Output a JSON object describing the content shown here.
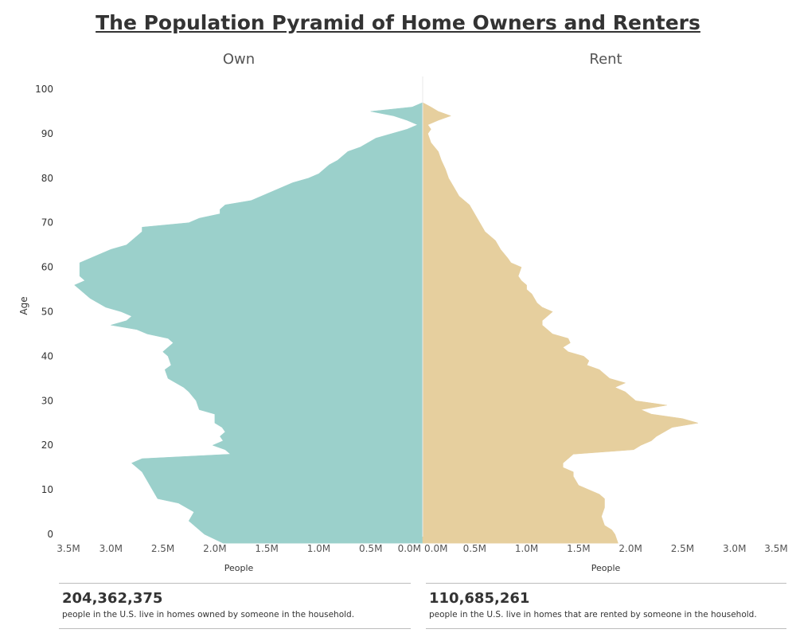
{
  "title": "The Population Pyramid of Home Owners and Renters",
  "chart_data": {
    "type": "area",
    "title": "The Population Pyramid of Home Owners and Renters",
    "ylabel": "Age",
    "ylim": [
      -2,
      102
    ],
    "y_ticks": [
      "0",
      "10",
      "20",
      "30",
      "40",
      "50",
      "60",
      "70",
      "80",
      "90",
      "100"
    ],
    "grid": false,
    "panels": [
      {
        "name": "Own",
        "xlabel": "People",
        "direction": "left",
        "color": "#9bd0cb",
        "xlim": [
          0,
          3.5
        ],
        "x_ticks": [
          "3.5M",
          "3.0M",
          "2.5M",
          "2.0M",
          "1.5M",
          "1.0M",
          "0.5M",
          "0.0M"
        ],
        "unit": "M",
        "points": [
          [
            -2,
            1.92
          ],
          [
            0,
            2.1
          ],
          [
            2,
            2.2
          ],
          [
            3,
            2.25
          ],
          [
            5,
            2.2
          ],
          [
            7,
            2.35
          ],
          [
            8,
            2.55
          ],
          [
            10,
            2.6
          ],
          [
            12,
            2.65
          ],
          [
            14,
            2.7
          ],
          [
            15,
            2.75
          ],
          [
            16,
            2.8
          ],
          [
            17,
            2.7
          ],
          [
            18,
            1.85
          ],
          [
            19,
            1.9
          ],
          [
            20,
            2.02
          ],
          [
            21,
            1.92
          ],
          [
            22,
            1.95
          ],
          [
            23,
            1.9
          ],
          [
            24,
            1.93
          ],
          [
            25,
            2.0
          ],
          [
            27,
            2.0
          ],
          [
            28,
            2.15
          ],
          [
            30,
            2.18
          ],
          [
            32,
            2.25
          ],
          [
            33,
            2.3
          ],
          [
            35,
            2.45
          ],
          [
            37,
            2.48
          ],
          [
            38,
            2.42
          ],
          [
            40,
            2.45
          ],
          [
            41,
            2.5
          ],
          [
            43,
            2.4
          ],
          [
            44,
            2.45
          ],
          [
            45,
            2.65
          ],
          [
            46,
            2.75
          ],
          [
            47,
            3.0
          ],
          [
            48,
            2.85
          ],
          [
            49,
            2.8
          ],
          [
            50,
            2.9
          ],
          [
            51,
            3.05
          ],
          [
            53,
            3.2
          ],
          [
            55,
            3.3
          ],
          [
            56,
            3.35
          ],
          [
            57,
            3.25
          ],
          [
            58,
            3.3
          ],
          [
            60,
            3.3
          ],
          [
            61,
            3.3
          ],
          [
            63,
            3.1
          ],
          [
            64,
            3.0
          ],
          [
            65,
            2.85
          ],
          [
            67,
            2.75
          ],
          [
            68,
            2.7
          ],
          [
            69,
            2.7
          ],
          [
            70,
            2.25
          ],
          [
            71,
            2.15
          ],
          [
            72,
            1.95
          ],
          [
            73,
            1.95
          ],
          [
            74,
            1.9
          ],
          [
            75,
            1.65
          ],
          [
            76,
            1.55
          ],
          [
            78,
            1.35
          ],
          [
            79,
            1.25
          ],
          [
            80,
            1.1
          ],
          [
            81,
            1.0
          ],
          [
            83,
            0.9
          ],
          [
            84,
            0.82
          ],
          [
            86,
            0.72
          ],
          [
            87,
            0.6
          ],
          [
            89,
            0.45
          ],
          [
            90,
            0.3
          ],
          [
            91,
            0.15
          ],
          [
            92,
            0.05
          ],
          [
            93,
            0.15
          ],
          [
            94,
            0.28
          ],
          [
            95,
            0.5
          ],
          [
            96,
            0.1
          ],
          [
            97,
            0.0
          ]
        ]
      },
      {
        "name": "Rent",
        "xlabel": "People",
        "direction": "right",
        "color": "#e6cf9e",
        "xlim": [
          0,
          3.5
        ],
        "x_ticks": [
          "0.0M",
          "0.5M",
          "1.0M",
          "1.5M",
          "2.0M",
          "2.5M",
          "3.0M",
          "3.5M"
        ],
        "unit": "M",
        "points": [
          [
            -2,
            1.88
          ],
          [
            0,
            1.85
          ],
          [
            1,
            1.82
          ],
          [
            2,
            1.75
          ],
          [
            4,
            1.72
          ],
          [
            6,
            1.75
          ],
          [
            8,
            1.75
          ],
          [
            9,
            1.7
          ],
          [
            10,
            1.6
          ],
          [
            11,
            1.5
          ],
          [
            13,
            1.45
          ],
          [
            14,
            1.45
          ],
          [
            15,
            1.35
          ],
          [
            16,
            1.35
          ],
          [
            17,
            1.4
          ],
          [
            18,
            1.45
          ],
          [
            19,
            2.03
          ],
          [
            20,
            2.1
          ],
          [
            21,
            2.2
          ],
          [
            22,
            2.25
          ],
          [
            24,
            2.4
          ],
          [
            25,
            2.65
          ],
          [
            26,
            2.5
          ],
          [
            27,
            2.2
          ],
          [
            28,
            2.1
          ],
          [
            29,
            2.35
          ],
          [
            30,
            2.05
          ],
          [
            31,
            2.0
          ],
          [
            32,
            1.95
          ],
          [
            33,
            1.85
          ],
          [
            34,
            1.95
          ],
          [
            35,
            1.8
          ],
          [
            36,
            1.75
          ],
          [
            37,
            1.7
          ],
          [
            38,
            1.58
          ],
          [
            39,
            1.6
          ],
          [
            40,
            1.55
          ],
          [
            41,
            1.4
          ],
          [
            42,
            1.35
          ],
          [
            43,
            1.42
          ],
          [
            44,
            1.4
          ],
          [
            45,
            1.25
          ],
          [
            47,
            1.15
          ],
          [
            48,
            1.15
          ],
          [
            49,
            1.2
          ],
          [
            50,
            1.25
          ],
          [
            51,
            1.15
          ],
          [
            52,
            1.1
          ],
          [
            54,
            1.05
          ],
          [
            55,
            1.0
          ],
          [
            56,
            1.0
          ],
          [
            57,
            0.95
          ],
          [
            58,
            0.92
          ],
          [
            60,
            0.95
          ],
          [
            61,
            0.85
          ],
          [
            62,
            0.82
          ],
          [
            64,
            0.75
          ],
          [
            66,
            0.7
          ],
          [
            67,
            0.65
          ],
          [
            68,
            0.6
          ],
          [
            70,
            0.55
          ],
          [
            72,
            0.5
          ],
          [
            74,
            0.45
          ],
          [
            76,
            0.35
          ],
          [
            78,
            0.3
          ],
          [
            80,
            0.25
          ],
          [
            82,
            0.22
          ],
          [
            84,
            0.18
          ],
          [
            86,
            0.15
          ],
          [
            88,
            0.08
          ],
          [
            90,
            0.05
          ],
          [
            91,
            0.08
          ],
          [
            92,
            0.05
          ],
          [
            93,
            0.15
          ],
          [
            94,
            0.27
          ],
          [
            95,
            0.15
          ],
          [
            96,
            0.08
          ],
          [
            97,
            0.0
          ]
        ]
      }
    ]
  },
  "stats": [
    {
      "number": "204,362,375",
      "description": "people in the U.S. live in homes owned by someone in the household."
    },
    {
      "number": "110,685,261",
      "description": "people in the U.S. live in homes that are rented by someone in the household."
    }
  ]
}
